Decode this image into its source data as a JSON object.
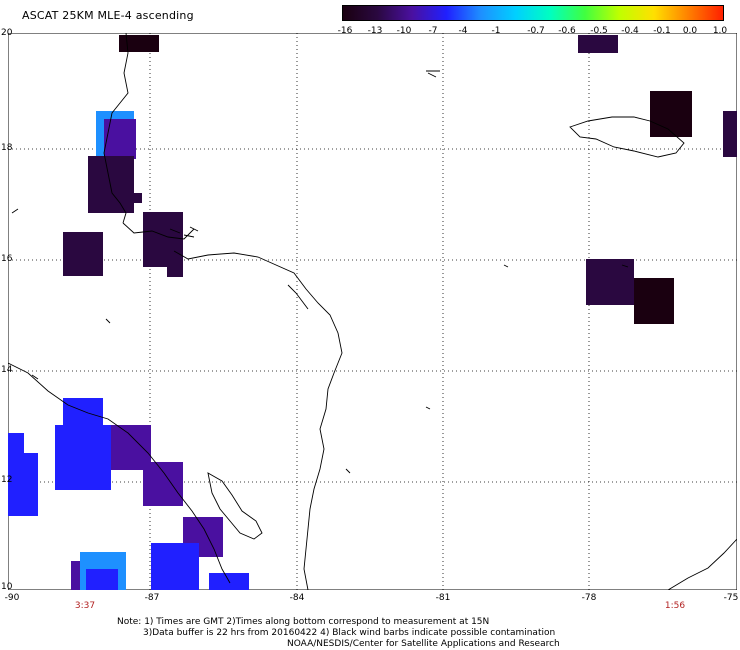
{
  "title": "ASCAT 25KM MLE-4 ascending",
  "colorbar": {
    "labels": [
      "-16",
      "-13",
      "-10",
      "-7",
      "-4",
      "-1",
      "-0.7",
      "-0.6",
      "-0.5",
      "-0.4",
      "-0.1",
      "0.0",
      "1.0"
    ],
    "colors": [
      "#1a0010",
      "#2a0840",
      "#4a10a0",
      "#2020ff",
      "#1e90ff",
      "#00d0ff",
      "#00ffc0",
      "#40ff40",
      "#c0ff00",
      "#ffe000",
      "#ff8000",
      "#ff2000"
    ]
  },
  "map": {
    "lat_labels": [
      "20",
      "18",
      "16",
      "14",
      "12",
      "10"
    ],
    "lon_labels": [
      "-90",
      "-87",
      "-84",
      "-81",
      "-78",
      "-75"
    ],
    "time_labels": [
      "3:37",
      "1:56"
    ],
    "colors": {
      "land_outline": "#000000",
      "grid": "#000000"
    }
  },
  "notes": {
    "line1": "Note: 1) Times are GMT 2)Times along bottom correspond to measurement at 15N",
    "line2": "3)Data buffer is 22 hrs from 20160422 4) Black wind barbs indicate possible contamination",
    "line3": "NOAA/NESDIS/Center for Satellite Applications and Research"
  }
}
